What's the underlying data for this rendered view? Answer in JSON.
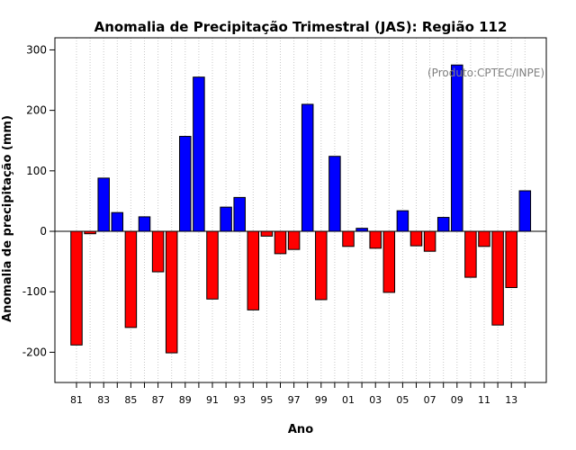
{
  "chart_data": {
    "type": "bar",
    "title": "Anomalia de Precipitação Trimestral (JAS): Região 112",
    "xlabel": "Ano",
    "ylabel": "Anomalia de precipitação (mm)",
    "credit": "(Produto:CPTEC/INPE)",
    "ylim": [
      -250,
      320
    ],
    "yticks": [
      -200,
      -100,
      0,
      100,
      200,
      300
    ],
    "grid": "vertical dotted",
    "categories": [
      "81",
      "82",
      "83",
      "84",
      "85",
      "86",
      "87",
      "88",
      "89",
      "90",
      "91",
      "92",
      "93",
      "94",
      "95",
      "96",
      "97",
      "98",
      "99",
      "00",
      "01",
      "02",
      "03",
      "04",
      "05",
      "06",
      "07",
      "08",
      "09",
      "10",
      "11",
      "12",
      "13",
      "14"
    ],
    "tick_labels_shown": [
      "81",
      "83",
      "85",
      "87",
      "89",
      "91",
      "93",
      "95",
      "97",
      "99",
      "01",
      "03",
      "05",
      "07",
      "09",
      "11",
      "13"
    ],
    "values": [
      -188,
      -4,
      88,
      31,
      -159,
      24,
      -67,
      -201,
      157,
      255,
      -112,
      40,
      56,
      -130,
      -8,
      -37,
      -30,
      210,
      -113,
      124,
      -25,
      5,
      -28,
      -101,
      34,
      -24,
      -33,
      23,
      275,
      -76,
      -25,
      -155,
      -93,
      67
    ],
    "colors": {
      "positive": "#0000ff",
      "negative": "#ff0000"
    }
  }
}
